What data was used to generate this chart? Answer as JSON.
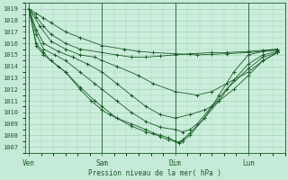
{
  "xlabel": "Pression niveau de la mer( hPa )",
  "bg_color": "#c6ead8",
  "plot_bg_color": "#cceedd",
  "grid_color": "#99ccaa",
  "line_color": "#1a5c28",
  "ylim": [
    1006.5,
    1019.5
  ],
  "yticks": [
    1007,
    1008,
    1009,
    1010,
    1011,
    1012,
    1013,
    1014,
    1015,
    1016,
    1017,
    1018,
    1019
  ],
  "x_labels": [
    "Ven",
    "Sam",
    "Dim",
    "Lun"
  ],
  "x_positions": [
    0.0,
    1.0,
    2.0,
    3.0
  ],
  "xlim": [
    -0.05,
    3.5
  ],
  "curves": [
    {
      "x": [
        0.0,
        0.1,
        0.2,
        0.3,
        0.5,
        0.7,
        1.0,
        1.3,
        1.5,
        1.7,
        2.0,
        2.3,
        2.5,
        2.7,
        3.0,
        3.2,
        3.4
      ],
      "y": [
        1019.0,
        1018.6,
        1018.2,
        1017.8,
        1017.0,
        1016.5,
        1015.8,
        1015.5,
        1015.3,
        1015.2,
        1015.1,
        1015.0,
        1015.05,
        1015.1,
        1015.2,
        1015.3,
        1015.4
      ]
    },
    {
      "x": [
        0.0,
        0.1,
        0.2,
        0.3,
        0.5,
        0.7,
        1.0,
        1.2,
        1.4,
        1.6,
        1.8,
        2.0,
        2.2,
        2.5,
        2.7,
        3.0,
        3.2,
        3.4
      ],
      "y": [
        1019.0,
        1018.3,
        1017.5,
        1016.8,
        1016.0,
        1015.5,
        1015.2,
        1015.0,
        1014.8,
        1014.8,
        1014.9,
        1015.0,
        1015.1,
        1015.2,
        1015.2,
        1015.3,
        1015.4,
        1015.5
      ]
    },
    {
      "x": [
        0.0,
        0.15,
        0.3,
        0.5,
        0.7,
        0.9,
        1.0,
        1.2,
        1.5,
        1.7,
        2.0,
        2.3,
        2.5,
        2.7,
        3.0,
        3.2,
        3.4
      ],
      "y": [
        1019.0,
        1017.5,
        1016.2,
        1015.5,
        1015.0,
        1014.8,
        1014.5,
        1014.0,
        1013.2,
        1012.5,
        1011.8,
        1011.5,
        1011.8,
        1012.5,
        1013.5,
        1014.5,
        1015.2
      ]
    },
    {
      "x": [
        0.0,
        0.1,
        0.2,
        0.4,
        0.6,
        0.8,
        1.0,
        1.2,
        1.4,
        1.6,
        1.8,
        2.0,
        2.2,
        2.4,
        2.5,
        2.6,
        2.8,
        3.0,
        3.2,
        3.4
      ],
      "y": [
        1019.0,
        1017.2,
        1016.0,
        1015.3,
        1014.8,
        1014.2,
        1013.5,
        1012.5,
        1011.5,
        1010.5,
        1009.8,
        1009.5,
        1009.8,
        1010.2,
        1010.5,
        1011.0,
        1012.0,
        1013.2,
        1014.5,
        1015.2
      ]
    },
    {
      "x": [
        0.0,
        0.1,
        0.2,
        0.35,
        0.5,
        0.7,
        0.9,
        1.0,
        1.2,
        1.4,
        1.6,
        1.8,
        2.0,
        2.1,
        2.2,
        2.3,
        2.5,
        2.7,
        3.0,
        3.2,
        3.4
      ],
      "y": [
        1019.0,
        1016.8,
        1015.5,
        1015.0,
        1014.5,
        1013.5,
        1012.5,
        1012.0,
        1011.0,
        1010.0,
        1009.2,
        1008.7,
        1008.5,
        1008.3,
        1008.5,
        1009.0,
        1010.5,
        1012.0,
        1013.8,
        1014.8,
        1015.2
      ]
    },
    {
      "x": [
        0.0,
        0.1,
        0.2,
        0.3,
        0.5,
        0.7,
        0.9,
        1.0,
        1.2,
        1.4,
        1.6,
        1.8,
        1.9,
        2.0,
        2.05,
        2.1,
        2.2,
        2.4,
        2.6,
        2.8,
        3.0,
        3.2,
        3.4
      ],
      "y": [
        1019.0,
        1016.0,
        1015.2,
        1014.5,
        1013.5,
        1012.2,
        1011.0,
        1010.5,
        1009.5,
        1008.8,
        1008.3,
        1007.9,
        1007.6,
        1007.5,
        1007.4,
        1007.6,
        1008.2,
        1009.5,
        1011.0,
        1012.8,
        1014.2,
        1015.0,
        1015.3
      ]
    },
    {
      "x": [
        0.0,
        0.1,
        0.2,
        0.3,
        0.4,
        0.5,
        0.7,
        0.85,
        1.0,
        1.1,
        1.2,
        1.4,
        1.6,
        1.7,
        1.8,
        1.9,
        2.0,
        2.05,
        2.1,
        2.2,
        2.4,
        2.6,
        2.8,
        3.0,
        3.2,
        3.4
      ],
      "y": [
        1019.0,
        1015.8,
        1015.0,
        1014.5,
        1014.0,
        1013.5,
        1012.0,
        1011.0,
        1010.2,
        1009.8,
        1009.5,
        1009.0,
        1008.5,
        1008.2,
        1008.0,
        1007.8,
        1007.5,
        1007.3,
        1007.5,
        1008.0,
        1009.5,
        1011.5,
        1013.5,
        1015.0,
        1015.3,
        1015.5
      ]
    }
  ]
}
